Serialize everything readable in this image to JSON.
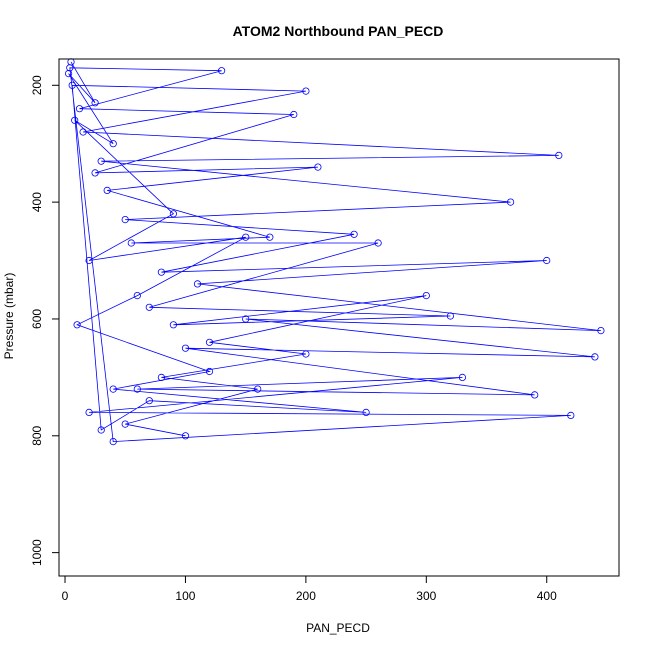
{
  "chart_data": {
    "type": "line",
    "title": "ATOM2 Northbound PAN_PECD",
    "xlabel": "PAN_PECD",
    "ylabel": "Pressure (mbar)",
    "xlim": [
      -5,
      460
    ],
    "ylim": [
      1040,
      155
    ],
    "y_reversed": true,
    "x_ticks": [
      0,
      100,
      200,
      300,
      400
    ],
    "y_ticks": [
      200,
      400,
      600,
      800,
      1000
    ],
    "grid": false,
    "series_color": "#0000ff",
    "marker": "open-circle",
    "series": [
      {
        "name": "",
        "points": [
          [
            5,
            160
          ],
          [
            25,
            230
          ],
          [
            3,
            180
          ],
          [
            40,
            300
          ],
          [
            8,
            260
          ],
          [
            90,
            420
          ],
          [
            20,
            500
          ],
          [
            150,
            460
          ],
          [
            60,
            560
          ],
          [
            10,
            610
          ],
          [
            120,
            690
          ],
          [
            40,
            720
          ],
          [
            250,
            760
          ],
          [
            70,
            740
          ],
          [
            30,
            790
          ],
          [
            6,
            200
          ],
          [
            200,
            210
          ],
          [
            15,
            280
          ],
          [
            410,
            320
          ],
          [
            30,
            330
          ],
          [
            370,
            400
          ],
          [
            50,
            430
          ],
          [
            240,
            455
          ],
          [
            80,
            520
          ],
          [
            400,
            500
          ],
          [
            110,
            540
          ],
          [
            445,
            620
          ],
          [
            150,
            600
          ],
          [
            440,
            665
          ],
          [
            100,
            650
          ],
          [
            390,
            730
          ],
          [
            60,
            720
          ],
          [
            330,
            700
          ],
          [
            20,
            760
          ],
          [
            420,
            765
          ],
          [
            40,
            810
          ],
          [
            4,
            170
          ],
          [
            130,
            175
          ],
          [
            12,
            240
          ],
          [
            190,
            250
          ],
          [
            25,
            350
          ],
          [
            210,
            340
          ],
          [
            35,
            380
          ],
          [
            170,
            460
          ],
          [
            55,
            470
          ],
          [
            260,
            470
          ],
          [
            70,
            580
          ],
          [
            320,
            595
          ],
          [
            90,
            610
          ],
          [
            300,
            560
          ],
          [
            120,
            640
          ],
          [
            200,
            660
          ],
          [
            80,
            700
          ],
          [
            160,
            720
          ],
          [
            50,
            780
          ],
          [
            100,
            800
          ]
        ]
      }
    ]
  }
}
